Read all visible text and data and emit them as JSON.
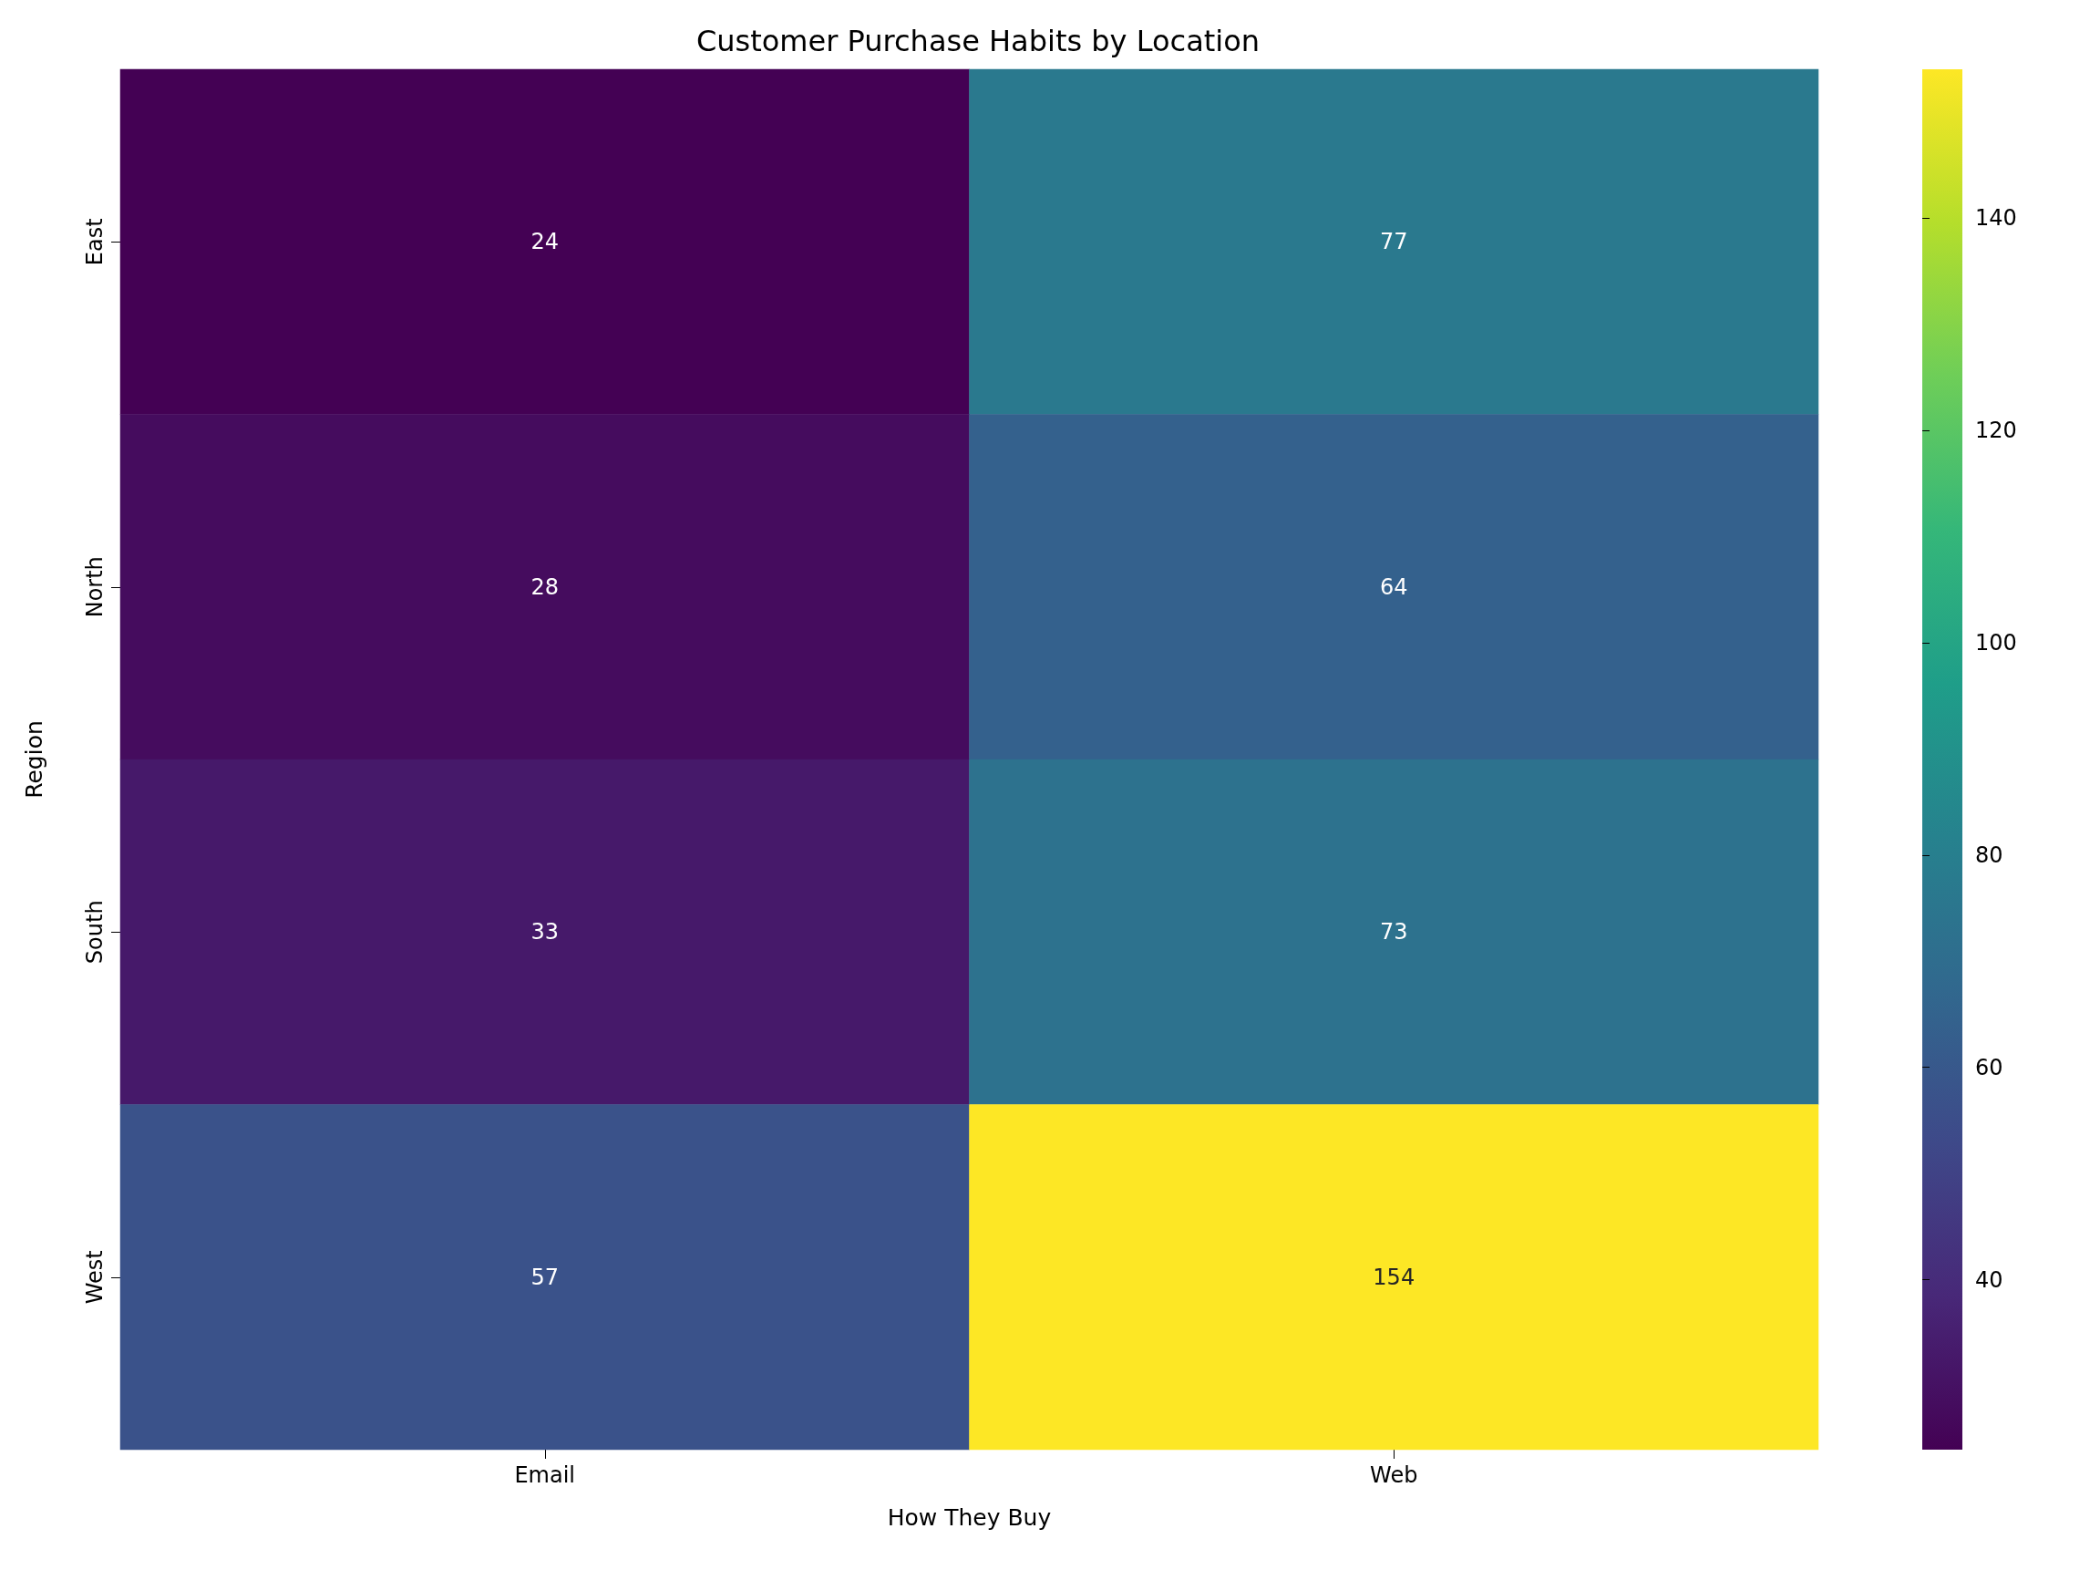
{
  "chart_data": {
    "type": "heatmap",
    "title": "Customer Purchase Habits by Location",
    "xlabel": "How They Buy",
    "ylabel": "Region",
    "categories": [
      "Email",
      "Web"
    ],
    "y_categories": [
      "East",
      "North",
      "South",
      "West"
    ],
    "cells": [
      [
        24,
        77
      ],
      [
        28,
        64
      ],
      [
        33,
        73
      ],
      [
        57,
        154
      ]
    ],
    "clim": [
      24,
      154
    ],
    "cticks": [
      40,
      60,
      80,
      100,
      120,
      140
    ],
    "data_labels": true
  }
}
